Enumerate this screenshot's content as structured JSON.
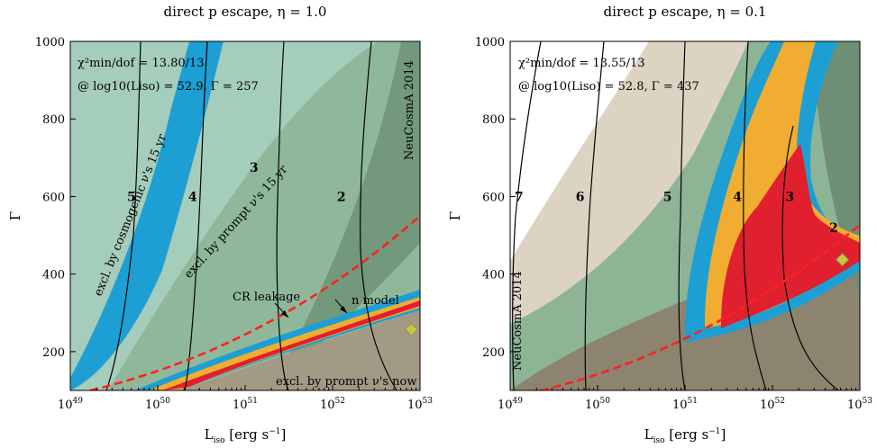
{
  "chart_data": [
    {
      "type": "contour",
      "title": "direct p escape, η = 1.0",
      "xlabel": "L_iso [erg s^-1]",
      "ylabel": "Γ",
      "xscale": "log",
      "xlim": [
        1e+49,
        1e+53
      ],
      "ylim": [
        100,
        1000
      ],
      "x_ticks": [
        {
          "value": 1e+49,
          "base": "10",
          "exp": "49"
        },
        {
          "value": 1e+50,
          "base": "10",
          "exp": "50"
        },
        {
          "value": 1e+51,
          "base": "10",
          "exp": "51"
        },
        {
          "value": 1e+52,
          "base": "10",
          "exp": "52"
        },
        {
          "value": 1e+53,
          "base": "10",
          "exp": "53"
        }
      ],
      "y_ticks": [
        200,
        400,
        600,
        800,
        1000
      ],
      "fit_line1": "χ²min/dof = 13.80/13",
      "fit_line2": "@ log10(Liso) = 52.9, Γ = 257",
      "best_fit": {
        "log10_Liso": 52.9,
        "Gamma": 257
      },
      "contour_labels": [
        {
          "text": "5",
          "log10_Liso": 49.7,
          "Gamma": 600
        },
        {
          "text": "4",
          "log10_Liso": 50.4,
          "Gamma": 600
        },
        {
          "text": "3",
          "log10_Liso": 51.1,
          "Gamma": 675
        },
        {
          "text": "2",
          "log10_Liso": 52.1,
          "Gamma": 600
        }
      ],
      "annotations": [
        {
          "text": "excl. by cosmogenic ν's 15 yr"
        },
        {
          "text": "excl. by prompt ν's 15 yr"
        },
        {
          "text": "excl. by prompt ν's now"
        },
        {
          "text": "NeuCosmA 2014"
        },
        {
          "text": "CR leakage"
        },
        {
          "text": "n model"
        }
      ],
      "colors": {
        "sigma1": "#e0202f",
        "sigma2": "#f0ad32",
        "sigma3": "#1e9fd3",
        "excl_cosmo": "#a5cdbb",
        "excl_prompt15": "#87b08f",
        "excl_now": "#a39a86",
        "neucosma": "#6e8f76"
      }
    },
    {
      "type": "contour",
      "title": "direct p escape, η = 0.1",
      "xlabel": "L_iso [erg s^-1]",
      "ylabel": "Γ",
      "xscale": "log",
      "xlim": [
        1e+49,
        1e+53
      ],
      "ylim": [
        100,
        1000
      ],
      "x_ticks": [
        {
          "value": 1e+49,
          "base": "10",
          "exp": "49"
        },
        {
          "value": 1e+50,
          "base": "10",
          "exp": "50"
        },
        {
          "value": 1e+51,
          "base": "10",
          "exp": "51"
        },
        {
          "value": 1e+52,
          "base": "10",
          "exp": "52"
        },
        {
          "value": 1e+53,
          "base": "10",
          "exp": "53"
        }
      ],
      "y_ticks": [
        200,
        400,
        600,
        800,
        1000
      ],
      "fit_line1": "χ²min/dof = 13.55/13",
      "fit_line2": "@ log10(Liso) = 52.8, Γ = 437",
      "best_fit": {
        "log10_Liso": 52.8,
        "Gamma": 437
      },
      "contour_labels": [
        {
          "text": "7",
          "log10_Liso": 49.1,
          "Gamma": 600
        },
        {
          "text": "6",
          "log10_Liso": 49.8,
          "Gamma": 600
        },
        {
          "text": "5",
          "log10_Liso": 50.8,
          "Gamma": 600
        },
        {
          "text": "4",
          "log10_Liso": 51.6,
          "Gamma": 600
        },
        {
          "text": "3",
          "log10_Liso": 52.2,
          "Gamma": 600
        },
        {
          "text": "2",
          "log10_Liso": 52.7,
          "Gamma": 520
        }
      ],
      "annotations": [
        {
          "text": "NeuCosmA 2014"
        }
      ],
      "colors": {
        "sigma1": "#e0202f",
        "sigma2": "#f0ad32",
        "sigma3": "#1e9fd3",
        "excl_cosmo": "#ddd3c3",
        "excl_prompt15": "#c8bba8",
        "excl_now": "#a39a86",
        "neucosma": "#8d8470"
      }
    }
  ]
}
